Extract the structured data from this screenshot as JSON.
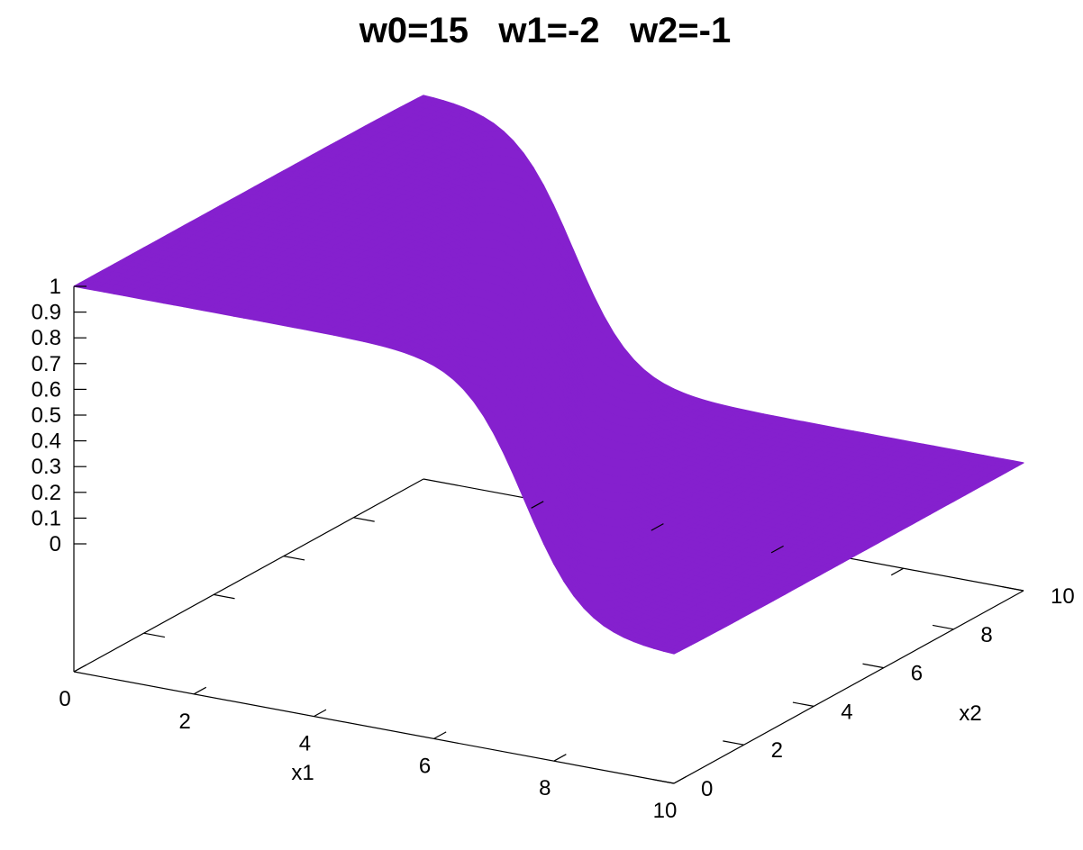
{
  "chart_data": {
    "type": "surface",
    "title": "w0=15   w1=-2   w2=-1",
    "function": "1/(1+exp(-(w0 + w1*x1 + w2*x2)))",
    "params": {
      "w0": 15,
      "w1": -2,
      "w2": -1
    },
    "xlabel": "x1",
    "ylabel": "x2",
    "zlabel": "",
    "xlim": [
      0,
      10
    ],
    "ylim": [
      0,
      10
    ],
    "zlim": [
      0,
      1
    ],
    "x_ticks": [
      "0",
      "2",
      "4",
      "6",
      "8",
      "10"
    ],
    "y_ticks": [
      "0",
      "2",
      "4",
      "6",
      "8",
      "10"
    ],
    "z_ticks": [
      "0",
      "0.1",
      "0.2",
      "0.3",
      "0.4",
      "0.5",
      "0.6",
      "0.7",
      "0.8",
      "0.9",
      "1"
    ],
    "surface_color": "#8520CE",
    "axis_color": "#000000",
    "grid": false
  }
}
